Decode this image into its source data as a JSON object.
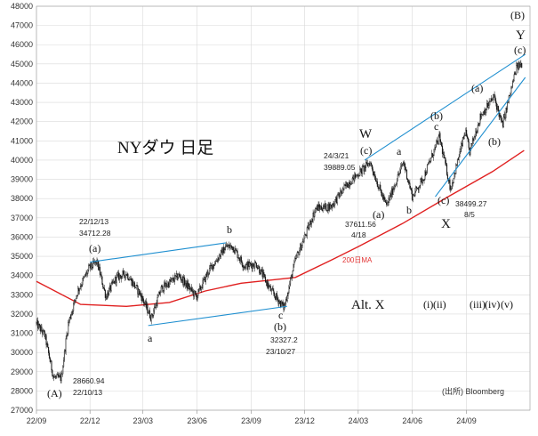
{
  "chart_data": {
    "type": "candlestick",
    "title": "NYダウ 日足",
    "source": "(出所) Bloomberg",
    "ylim": [
      27000,
      48000
    ],
    "yticks": [
      27000,
      28000,
      29000,
      30000,
      31000,
      32000,
      33000,
      34000,
      35000,
      36000,
      37000,
      38000,
      39000,
      40000,
      41000,
      42000,
      43000,
      44000,
      45000,
      46000,
      47000,
      48000
    ],
    "xtick_labels": [
      "22/09",
      "22/12",
      "23/03",
      "23/06",
      "23/09",
      "23/12",
      "24/03",
      "24/06",
      "24/09"
    ],
    "grid": true,
    "price_path": [
      {
        "date": "2022-09-01",
        "value": 31500
      },
      {
        "date": "2022-09-15",
        "value": 30900
      },
      {
        "date": "2022-09-30",
        "value": 28700
      },
      {
        "date": "2022-10-13",
        "value": 28660.94
      },
      {
        "date": "2022-10-25",
        "value": 31500
      },
      {
        "date": "2022-11-10",
        "value": 33200
      },
      {
        "date": "2022-11-30",
        "value": 34400
      },
      {
        "date": "2022-12-13",
        "value": 34712.28
      },
      {
        "date": "2022-12-28",
        "value": 32900
      },
      {
        "date": "2023-01-15",
        "value": 33900
      },
      {
        "date": "2023-02-01",
        "value": 34100
      },
      {
        "date": "2023-02-25",
        "value": 33000
      },
      {
        "date": "2023-03-15",
        "value": 31800
      },
      {
        "date": "2023-04-01",
        "value": 33300
      },
      {
        "date": "2023-05-01",
        "value": 34000
      },
      {
        "date": "2023-05-31",
        "value": 32900
      },
      {
        "date": "2023-06-20",
        "value": 34200
      },
      {
        "date": "2023-07-20",
        "value": 35500
      },
      {
        "date": "2023-08-01",
        "value": 35500
      },
      {
        "date": "2023-08-20",
        "value": 34500
      },
      {
        "date": "2023-09-10",
        "value": 34600
      },
      {
        "date": "2023-10-05",
        "value": 33200
      },
      {
        "date": "2023-10-27",
        "value": 32327.2
      },
      {
        "date": "2023-11-15",
        "value": 34800
      },
      {
        "date": "2023-12-01",
        "value": 36000
      },
      {
        "date": "2023-12-20",
        "value": 37500
      },
      {
        "date": "2024-01-15",
        "value": 37600
      },
      {
        "date": "2024-02-10",
        "value": 38700
      },
      {
        "date": "2024-03-21",
        "value": 39889.05
      },
      {
        "date": "2024-04-05",
        "value": 38600
      },
      {
        "date": "2024-04-18",
        "value": 37611.56
      },
      {
        "date": "2024-05-17",
        "value": 39900
      },
      {
        "date": "2024-06-01",
        "value": 38100
      },
      {
        "date": "2024-06-20",
        "value": 39100
      },
      {
        "date": "2024-07-17",
        "value": 41200
      },
      {
        "date": "2024-08-05",
        "value": 38499.27
      },
      {
        "date": "2024-08-30",
        "value": 41500
      },
      {
        "date": "2024-09-06",
        "value": 40400
      },
      {
        "date": "2024-09-25",
        "value": 42300
      },
      {
        "date": "2024-10-18",
        "value": 43300
      },
      {
        "date": "2024-11-01",
        "value": 41800
      },
      {
        "date": "2024-11-25",
        "value": 44800
      },
      {
        "date": "2024-12-04",
        "value": 45000
      }
    ],
    "ma200_path": [
      {
        "date": "2022-09-01",
        "value": 33700
      },
      {
        "date": "2022-11-15",
        "value": 32500
      },
      {
        "date": "2023-02-01",
        "value": 32400
      },
      {
        "date": "2023-04-15",
        "value": 32600
      },
      {
        "date": "2023-06-15",
        "value": 33200
      },
      {
        "date": "2023-08-15",
        "value": 33600
      },
      {
        "date": "2023-11-15",
        "value": 33900
      },
      {
        "date": "2024-01-15",
        "value": 34800
      },
      {
        "date": "2024-03-01",
        "value": 35500
      },
      {
        "date": "2024-05-15",
        "value": 36700
      },
      {
        "date": "2024-08-01",
        "value": 38100
      },
      {
        "date": "2024-10-15",
        "value": 39400
      },
      {
        "date": "2024-12-08",
        "value": 40500
      }
    ],
    "ma_label": "200日MA",
    "trendlines": [
      {
        "from": {
          "date": "2022-12-01",
          "value": 34700
        },
        "to": {
          "date": "2023-07-20",
          "value": 35700
        }
      },
      {
        "from": {
          "date": "2023-03-10",
          "value": 31400
        },
        "to": {
          "date": "2023-11-01",
          "value": 32400
        }
      },
      {
        "from": {
          "date": "2024-03-12",
          "value": 40000
        },
        "to": {
          "date": "2024-12-10",
          "value": 45500
        }
      },
      {
        "from": {
          "date": "2024-07-10",
          "value": 38100
        },
        "to": {
          "date": "2024-12-10",
          "value": 44300
        }
      }
    ],
    "annotations": {
      "low_2022": {
        "value": "28660.94",
        "date": "22/10/13",
        "wave": "(A)"
      },
      "high_2022": {
        "date": "22/12/13",
        "value": "34712.28",
        "wave": "(a)"
      },
      "low_2023": {
        "value": "32327.2",
        "date": "23/10/27",
        "wave_c": "c",
        "wave": "(b)"
      },
      "high_2024": {
        "date": "24/3/21",
        "value": "39889.05",
        "wave_top": "W",
        "wave": "(c)"
      },
      "low_apr": {
        "value": "37611.56",
        "date": "4/18",
        "wave": "(a)"
      },
      "low_aug": {
        "value": "38499.27",
        "date": "8/5"
      },
      "waves": {
        "a1": "a",
        "b1": "b",
        "a2": "a",
        "b2": "b",
        "c2": "c",
        "b_paren": "(b)",
        "c_paren": "(c)",
        "x": "X",
        "a_paren_r": "(a)",
        "b_paren_r": "(b)",
        "big_b": "(B)",
        "y": "Y",
        "c_paren_r": "(c)"
      },
      "alt_x": "Alt. X",
      "sub_waves": [
        "(i)",
        "(ii)",
        "(iii)",
        "(iv)",
        "(v)"
      ]
    }
  }
}
